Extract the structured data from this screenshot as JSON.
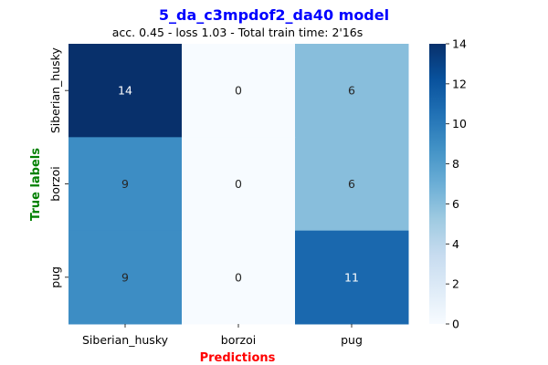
{
  "chart_data": {
    "type": "heatmap",
    "title": "5_da_c3mpdof2_da40 model",
    "subtitle": "acc. 0.45 - loss 1.03 - Total train time: 2'16s",
    "xlabel": "Predictions",
    "ylabel": "True labels",
    "x_categories": [
      "Siberian_husky",
      "borzoi",
      "pug"
    ],
    "y_categories": [
      "Siberian_husky",
      "borzoi",
      "pug"
    ],
    "values": [
      [
        14,
        0,
        6
      ],
      [
        9,
        0,
        6
      ],
      [
        9,
        0,
        11
      ]
    ],
    "colorbar": {
      "min": 0,
      "max": 14,
      "ticks": [
        "0",
        "2",
        "4",
        "6",
        "8",
        "10",
        "12",
        "14"
      ],
      "colormap": "Blues"
    },
    "colors": {
      "title": "#0000ff",
      "xlabel": "#ff0000",
      "ylabel": "#008000"
    }
  }
}
